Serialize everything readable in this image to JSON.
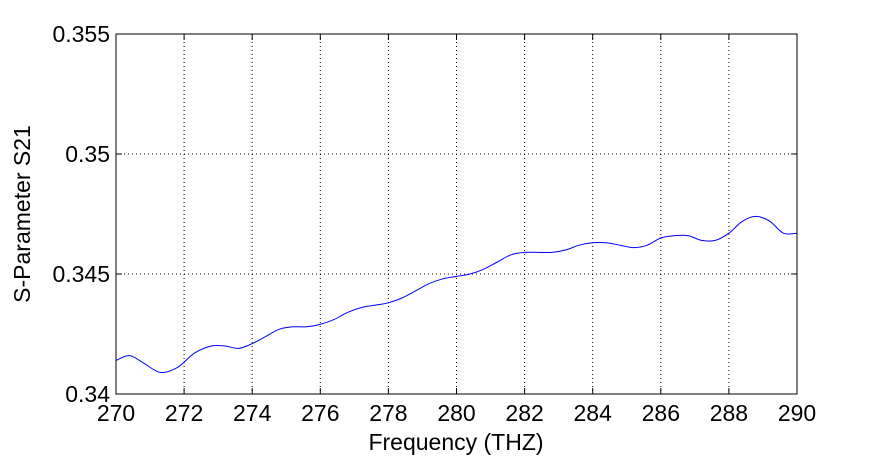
{
  "chart_data": {
    "type": "line",
    "title": "",
    "xlabel": "Frequency (THZ)",
    "ylabel": "S-Parameter S21",
    "xlim": [
      270,
      290
    ],
    "ylim": [
      0.34,
      0.355
    ],
    "xticks": [
      270,
      272,
      274,
      276,
      278,
      280,
      282,
      284,
      286,
      288,
      290
    ],
    "xtick_labels": [
      "270",
      "272",
      "274",
      "276",
      "278",
      "280",
      "282",
      "284",
      "286",
      "288",
      "290"
    ],
    "yticks": [
      0.34,
      0.345,
      0.35,
      0.355
    ],
    "ytick_labels": [
      "0.34",
      "0.345",
      "0.35",
      "0.355"
    ],
    "grid": true,
    "line_color": "#0000ff",
    "series": [
      {
        "x": [
          270.0,
          270.4,
          270.8,
          271.3,
          271.8,
          272.3,
          272.8,
          273.2,
          273.6,
          274.0,
          274.4,
          274.8,
          275.2,
          275.6,
          276.0,
          276.4,
          276.8,
          277.2,
          277.6,
          278.0,
          278.4,
          278.8,
          279.2,
          279.6,
          280.0,
          280.4,
          280.8,
          281.2,
          281.6,
          282.0,
          282.4,
          282.8,
          283.2,
          283.6,
          284.0,
          284.4,
          284.8,
          285.2,
          285.6,
          286.0,
          286.4,
          286.8,
          287.2,
          287.6,
          288.0,
          288.4,
          288.8,
          289.2,
          289.6,
          290.0
        ],
        "y": [
          0.3414,
          0.3416,
          0.3413,
          0.3409,
          0.3411,
          0.3417,
          0.342,
          0.342,
          0.3419,
          0.3421,
          0.3424,
          0.3427,
          0.3428,
          0.3428,
          0.3429,
          0.3431,
          0.3434,
          0.3436,
          0.3437,
          0.3438,
          0.344,
          0.3443,
          0.3446,
          0.3448,
          0.3449,
          0.345,
          0.3452,
          0.3455,
          0.3458,
          0.3459,
          0.3459,
          0.3459,
          0.346,
          0.3462,
          0.3463,
          0.3463,
          0.3462,
          0.3461,
          0.3462,
          0.3465,
          0.3466,
          0.3466,
          0.3464,
          0.3464,
          0.3467,
          0.3472,
          0.3474,
          0.3472,
          0.3467,
          0.3467
        ]
      }
    ]
  }
}
